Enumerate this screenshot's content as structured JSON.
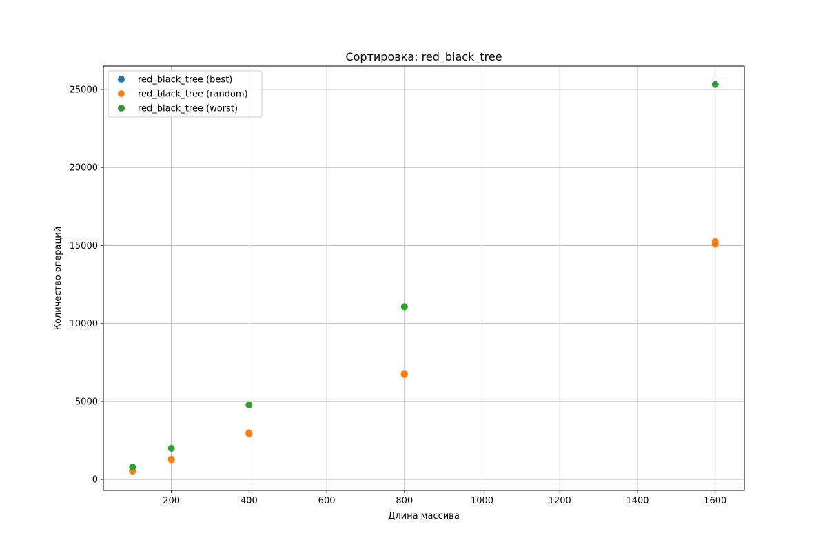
{
  "chart_data": {
    "type": "scatter",
    "title": "Сортировка: red_black_tree",
    "xlabel": "Длина массива",
    "ylabel": "Количество операций",
    "xlim": [
      25,
      1675
    ],
    "ylim": [
      -700,
      26500
    ],
    "xticks": [
      200,
      400,
      600,
      800,
      1000,
      1200,
      1400,
      1600
    ],
    "yticks": [
      0,
      5000,
      10000,
      15000,
      20000,
      25000
    ],
    "grid": true,
    "legend_position": "top-left",
    "series": [
      {
        "name": "red_black_tree (best)",
        "color": "#1f77b4",
        "points": [
          [
            100,
            530
          ],
          [
            200,
            1280
          ],
          [
            400,
            2950
          ],
          [
            800,
            6750
          ],
          [
            1600,
            15100
          ]
        ]
      },
      {
        "name": "red_black_tree (random)",
        "color": "#ff7f0e",
        "points": [
          [
            100,
            540
          ],
          [
            100,
            560
          ],
          [
            200,
            1260
          ],
          [
            200,
            1300
          ],
          [
            400,
            2930
          ],
          [
            400,
            3000
          ],
          [
            800,
            6730
          ],
          [
            800,
            6800
          ],
          [
            1600,
            15080
          ],
          [
            1600,
            15250
          ]
        ]
      },
      {
        "name": "red_black_tree (worst)",
        "color": "#2ca02c",
        "points": [
          [
            100,
            800
          ],
          [
            200,
            2000
          ],
          [
            400,
            4780
          ],
          [
            800,
            11080
          ],
          [
            1600,
            25320
          ]
        ]
      }
    ]
  }
}
